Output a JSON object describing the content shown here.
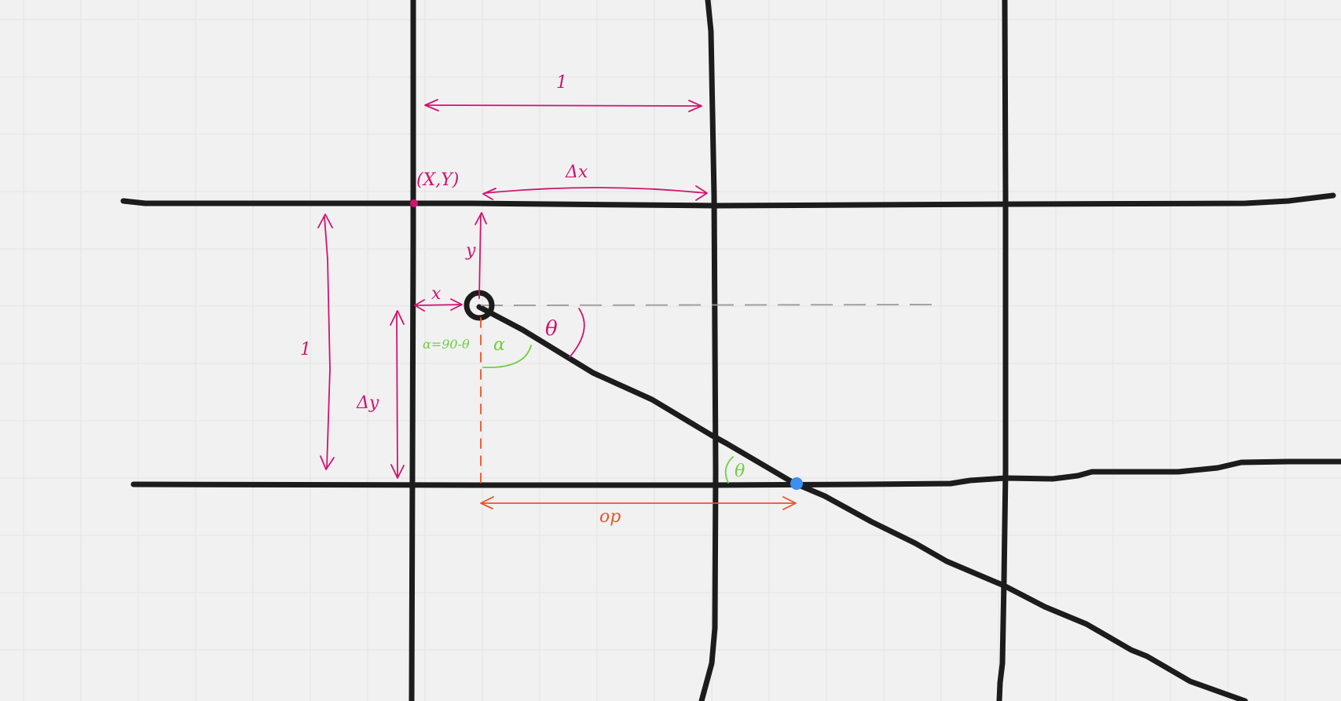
{
  "colors": {
    "background": "#f1f1f1",
    "grid": "#e4e4e4",
    "ink": "#1c1c1c",
    "magenta": "#d1146e",
    "green": "#6fcf3f",
    "orange": "#e8562a",
    "dashed": "#9a9a9a",
    "point": "#3a8ff0"
  },
  "labels": {
    "top_unit": "1",
    "cell_origin": "(X,Y)",
    "delta_x": "Δx",
    "local_y": "y",
    "local_x": "x",
    "left_unit": "1",
    "delta_y": "Δy",
    "theta_upper": "θ",
    "alpha_formula": "α=90-θ",
    "alpha": "α",
    "theta_lower": "θ",
    "op": "op"
  }
}
